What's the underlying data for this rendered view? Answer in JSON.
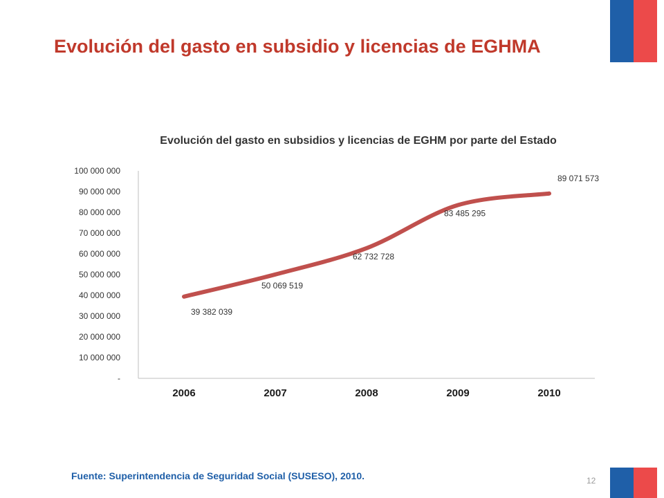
{
  "slide": {
    "title": "Evolución del gasto en subsidio y licencias de EGHMA",
    "source": "Fuente: Superintendencia de Seguridad Social (SUSESO), 2010.",
    "page_number": "12"
  },
  "colors": {
    "title": "#c0392b",
    "line": "#c0504d",
    "flag_blue": "#1f5fa8",
    "flag_red": "#ec4a4a",
    "source": "#1f5fa8"
  },
  "chart_data": {
    "type": "line",
    "title": "Evolución del gasto en subsidios y licencias de EGHM por parte del Estado",
    "categories": [
      "2006",
      "2007",
      "2008",
      "2009",
      "2010"
    ],
    "series": [
      {
        "values": [
          39382039,
          50069519,
          62732728,
          83485295,
          89071573
        ]
      }
    ],
    "data_labels": [
      "39 382 039",
      "50 069 519",
      "62 732 728",
      "83 485 295",
      "89 071 573"
    ],
    "y_tick_labels": [
      "-",
      "10 000 000",
      "20 000 000",
      "30 000 000",
      "40 000 000",
      "50 000 000",
      "60 000 000",
      "70 000 000",
      "80 000 000",
      "90 000 000",
      "100 000 000"
    ],
    "ylim": [
      0,
      100000000
    ],
    "xlabel": "",
    "ylabel": "",
    "grid": false,
    "legend": "none",
    "smooth": true
  }
}
